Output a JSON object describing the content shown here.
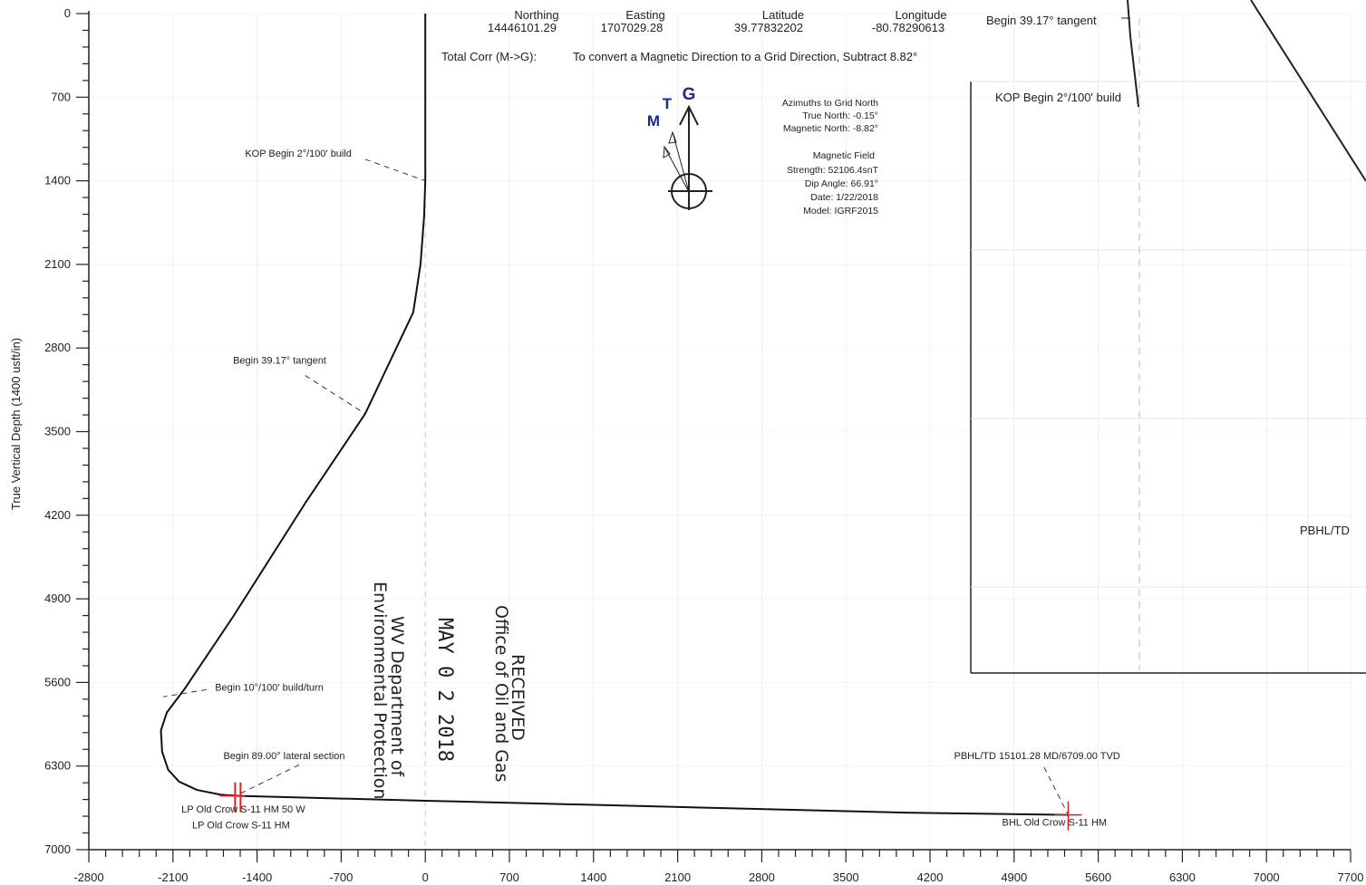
{
  "chart_data": {
    "type": "line",
    "ylabel": "True Vertical Depth (1400 usft/in)",
    "xlim": [
      -2800,
      7700
    ],
    "ylim": [
      0,
      7000
    ],
    "y_inverted": true,
    "grid": true,
    "x_ticks": [
      -2800,
      -2100,
      -1400,
      -700,
      0,
      700,
      1400,
      2100,
      2800,
      3500,
      4200,
      4900,
      5600,
      6300,
      7000,
      7700
    ],
    "y_ticks": [
      0,
      700,
      1400,
      2100,
      2800,
      3500,
      4200,
      4900,
      5600,
      6300,
      7000
    ],
    "x_tick_labels": [
      "-2800",
      "-2100",
      "-1400",
      "-700",
      "0",
      "700",
      "1400",
      "2100",
      "2800",
      "3500",
      "4200",
      "4900",
      "5600",
      "6300",
      "7000",
      "7700"
    ],
    "y_tick_labels": [
      "0",
      "700",
      "1400",
      "2100",
      "2800",
      "3500",
      "4200",
      "4900",
      "5600",
      "6300",
      "7000"
    ],
    "series": [
      {
        "x": [
          0,
          0,
          -10,
          -40,
          -100,
          -500,
          -1000,
          -1600,
          -2000,
          -2150,
          -2200,
          -2190,
          -2140,
          -2050,
          -1900,
          -1700,
          -1550,
          0,
          2000,
          4000,
          5350
        ],
        "y": [
          0,
          1400,
          1700,
          2100,
          2500,
          3350,
          4100,
          5050,
          5650,
          5850,
          6000,
          6180,
          6330,
          6430,
          6500,
          6540,
          6550,
          6590,
          6640,
          6690,
          6709
        ]
      }
    ],
    "annotations": [
      {
        "text": "KOP Begin 2°/100' build",
        "x": -1500,
        "y": 1200
      },
      {
        "text": "Begin 39.17° tangent",
        "x": -1600,
        "y": 2930
      },
      {
        "text": "Begin 10°/100' build/turn",
        "x": -1750,
        "y": 5670
      },
      {
        "text": "Begin 89.00° lateral section",
        "x": -1680,
        "y": 6240
      },
      {
        "text": "PBHL/TD 15101.28 MD/6709.00 TVD",
        "x": 4400,
        "y": 6240
      },
      {
        "text": "LP Old Crow S-11 HM 50 W",
        "x": -2030,
        "y": 6690
      },
      {
        "text": "LP Old Crow S-11 HM",
        "x": -1940,
        "y": 6820
      },
      {
        "text": "BHL Old Crow S-11 HM",
        "x": 4800,
        "y": 6800
      }
    ],
    "targets": [
      {
        "x": -1560,
        "y": 6550
      },
      {
        "x": 5350,
        "y": 6709
      }
    ]
  },
  "header": {
    "northing_label": "Northing",
    "northing_value": "14446101.29",
    "easting_label": "Easting",
    "easting_value": "1707029.28",
    "latitude_label": "Latitude",
    "latitude_value": "39.77832202",
    "longitude_label": "Longitude",
    "longitude_value": "-80.78290613",
    "total_corr_label": "Total Corr (M->G):",
    "total_corr_text": "To convert a Magnetic Direction to a Grid Direction, Subtract 8.82°"
  },
  "north_arrow": {
    "g": "G",
    "t": "T",
    "m": "M",
    "grid_color": "#1a2a8c"
  },
  "azimuth_info": {
    "title": "Azimuths to Grid North",
    "true_north": "True North: -0.15°",
    "magnetic_north": "Magnetic North: -8.82°",
    "field_title": "Magnetic Field",
    "strength": "Strength: 52106.4snT",
    "dip": "Dip Angle: 66.91°",
    "date": "Date: 1/22/2018",
    "model": "Model: IGRF2015"
  },
  "inset": {
    "tangent_label": "Begin 39.17° tangent",
    "kop_label": "KOP Begin 2°/100' build",
    "pbhl_label": "PBHL/TD"
  },
  "stamp": {
    "received": "RECEIVED",
    "office": "Office of Oil and Gas",
    "date": "MAY 0 2 2018",
    "dept": "WV Department of",
    "env": "Environmental Protection"
  },
  "colors": {
    "target_marker": "#e02020",
    "grid": "#d0d0d0"
  }
}
